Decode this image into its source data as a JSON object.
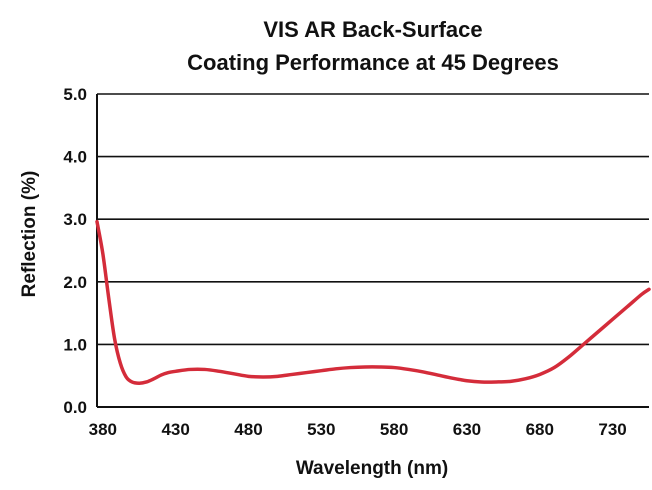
{
  "chart_data": {
    "type": "line",
    "title_lines": [
      "VIS AR Back-Surface",
      "Coating Performance at 45 Degrees"
    ],
    "xlabel": "Wavelength (nm)",
    "ylabel": "Reflection (%)",
    "xlim": [
      376,
      755
    ],
    "ylim": [
      0,
      5
    ],
    "x_ticks": [
      380,
      430,
      480,
      530,
      580,
      630,
      680,
      730
    ],
    "y_ticks": [
      {
        "value": 0,
        "label": "0.0"
      },
      {
        "value": 1,
        "label": "1.0"
      },
      {
        "value": 2,
        "label": "2.0"
      },
      {
        "value": 3,
        "label": "3.0"
      },
      {
        "value": 4,
        "label": "4.0"
      },
      {
        "value": 5,
        "label": "5.0"
      }
    ],
    "grid": "horizontal",
    "line_color": "#d42c3a",
    "series": [
      {
        "x": [
          376,
          380,
          384,
          388,
          392,
          396,
          400,
          405,
          410,
          415,
          420,
          425,
          430,
          440,
          450,
          460,
          470,
          480,
          490,
          500,
          510,
          520,
          530,
          540,
          550,
          560,
          570,
          580,
          590,
          600,
          610,
          620,
          630,
          640,
          650,
          660,
          670,
          680,
          690,
          700,
          710,
          720,
          730,
          740,
          750,
          755
        ],
        "y": [
          2.96,
          2.45,
          1.75,
          1.1,
          0.7,
          0.48,
          0.4,
          0.38,
          0.4,
          0.45,
          0.51,
          0.55,
          0.57,
          0.6,
          0.6,
          0.57,
          0.53,
          0.49,
          0.48,
          0.49,
          0.52,
          0.55,
          0.58,
          0.61,
          0.63,
          0.64,
          0.64,
          0.63,
          0.6,
          0.56,
          0.51,
          0.46,
          0.42,
          0.4,
          0.4,
          0.41,
          0.45,
          0.52,
          0.63,
          0.8,
          1.0,
          1.2,
          1.4,
          1.6,
          1.8,
          1.88
        ]
      }
    ]
  }
}
